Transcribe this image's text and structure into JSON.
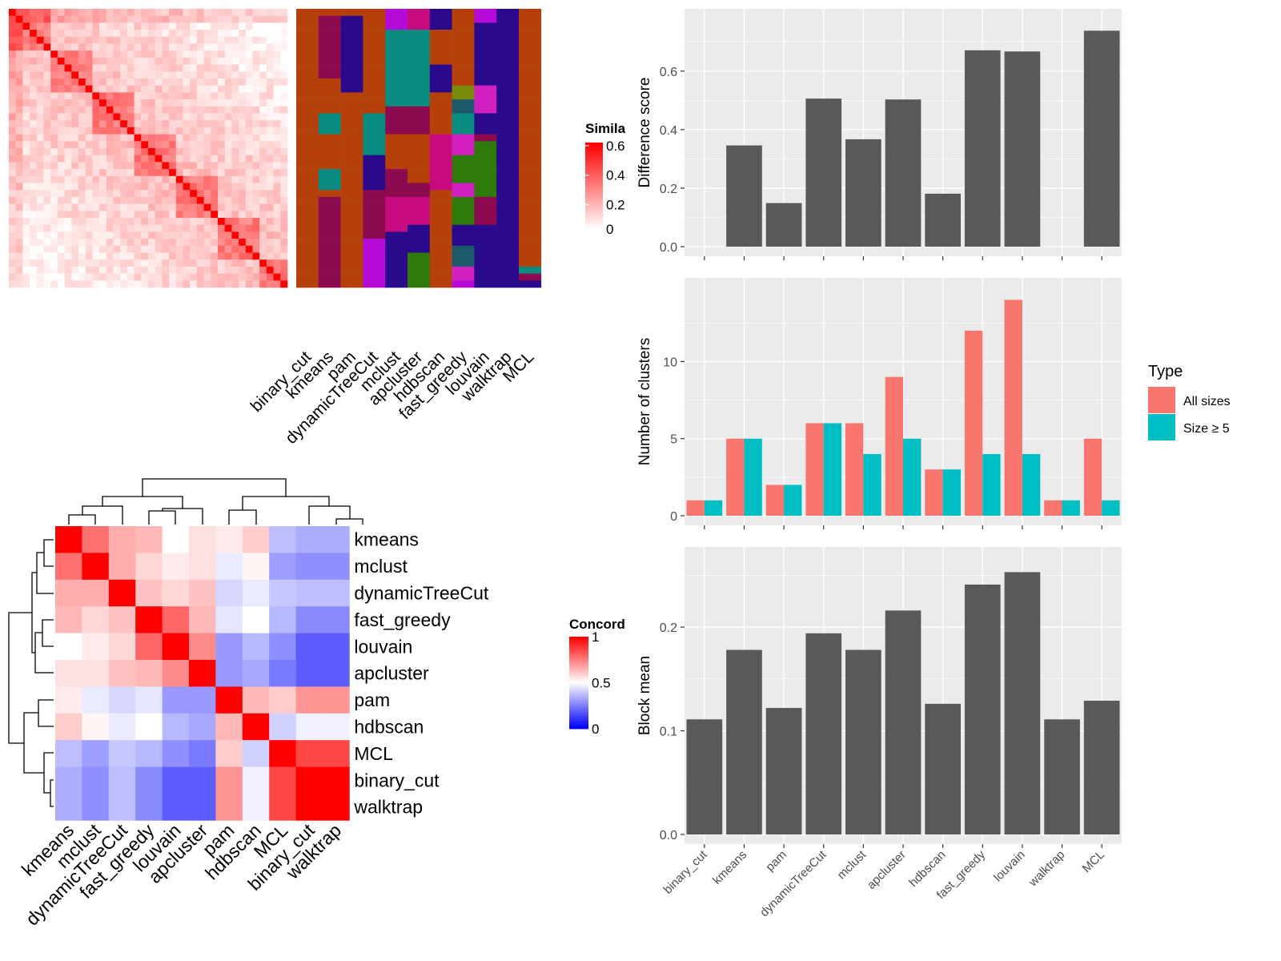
{
  "chart_data": [
    {
      "type": "heatmap",
      "panel": "similarity",
      "legend": {
        "title": "Simila",
        "ticks": [
          0,
          0.2,
          0.4,
          0.6
        ],
        "range": [
          0,
          0.6
        ],
        "colors": [
          "#ffffff",
          "#ff0000"
        ]
      },
      "matrix_size": 40,
      "column_labels": [
        "binary_cut",
        "kmeans",
        "pam",
        "dynamicTreeCut",
        "mclust",
        "apcluster",
        "hdbscan",
        "fast_greedy",
        "louvain",
        "walktrap",
        "MCL"
      ],
      "annotation_palette": [
        "#B5400A",
        "#8B0A50",
        "#2A0A8B",
        "#0A8B80",
        "#B50AD8",
        "#C80A80",
        "#2E7A0A",
        "#7A8B0A",
        "#1A5A6A",
        "#D020C0"
      ],
      "annotation_assignments": [
        [
          0,
          0,
          0,
          0,
          0,
          0,
          0,
          0,
          0,
          0,
          0,
          0,
          0,
          0,
          0,
          0,
          0,
          0,
          0,
          0,
          0,
          0,
          0,
          0,
          0,
          0,
          0,
          0,
          0,
          0,
          0,
          0,
          0,
          0,
          0,
          0,
          0,
          0,
          0,
          0
        ],
        [
          0,
          1,
          1,
          1,
          1,
          1,
          1,
          1,
          1,
          1,
          0,
          0,
          0,
          0,
          0,
          3,
          3,
          3,
          0,
          0,
          0,
          0,
          0,
          3,
          3,
          3,
          0,
          1,
          1,
          1,
          1,
          1,
          1,
          1,
          1,
          1,
          1,
          1,
          1,
          1
        ],
        [
          0,
          2,
          2,
          2,
          2,
          2,
          2,
          2,
          2,
          2,
          2,
          2,
          0,
          0,
          0,
          0,
          0,
          0,
          0,
          0,
          0,
          0,
          0,
          0,
          0,
          0,
          0,
          0,
          0,
          0,
          0,
          0,
          0,
          0,
          0,
          0,
          0,
          0,
          0,
          0
        ],
        [
          0,
          0,
          0,
          0,
          0,
          0,
          0,
          0,
          0,
          0,
          0,
          0,
          0,
          0,
          0,
          3,
          3,
          3,
          3,
          3,
          3,
          2,
          2,
          2,
          2,
          2,
          1,
          1,
          1,
          1,
          1,
          1,
          1,
          4,
          4,
          4,
          4,
          4,
          4,
          4
        ],
        [
          4,
          4,
          4,
          3,
          3,
          3,
          3,
          3,
          3,
          3,
          3,
          3,
          3,
          3,
          1,
          1,
          1,
          1,
          0,
          0,
          0,
          0,
          0,
          1,
          1,
          1,
          1,
          5,
          5,
          5,
          5,
          5,
          2,
          2,
          2,
          2,
          2,
          2,
          2,
          2
        ],
        [
          5,
          5,
          5,
          3,
          3,
          3,
          3,
          3,
          3,
          3,
          3,
          3,
          3,
          3,
          1,
          1,
          1,
          1,
          0,
          0,
          0,
          0,
          0,
          0,
          0,
          1,
          1,
          5,
          5,
          5,
          5,
          2,
          2,
          2,
          2,
          6,
          6,
          6,
          6,
          6
        ],
        [
          2,
          2,
          2,
          0,
          0,
          0,
          0,
          0,
          2,
          2,
          2,
          2,
          0,
          0,
          0,
          0,
          0,
          0,
          5,
          5,
          5,
          5,
          5,
          5,
          5,
          5,
          0,
          0,
          0,
          0,
          0,
          0,
          0,
          0,
          0,
          0,
          0,
          0,
          0,
          0
        ],
        [
          0,
          0,
          0,
          0,
          0,
          0,
          0,
          0,
          0,
          0,
          0,
          7,
          7,
          8,
          8,
          3,
          3,
          3,
          9,
          9,
          9,
          6,
          6,
          6,
          6,
          9,
          9,
          6,
          6,
          6,
          6,
          2,
          2,
          2,
          8,
          8,
          8,
          9,
          9,
          4
        ],
        [
          4,
          4,
          2,
          2,
          2,
          2,
          2,
          2,
          2,
          2,
          2,
          9,
          9,
          9,
          9,
          2,
          2,
          2,
          1,
          6,
          6,
          6,
          6,
          6,
          6,
          6,
          6,
          1,
          1,
          1,
          1,
          2,
          2,
          2,
          2,
          2,
          2,
          2,
          2,
          2
        ],
        [
          2,
          2,
          2,
          2,
          2,
          2,
          2,
          2,
          2,
          2,
          2,
          2,
          2,
          2,
          2,
          2,
          2,
          2,
          2,
          2,
          2,
          2,
          2,
          2,
          2,
          2,
          2,
          2,
          2,
          2,
          2,
          2,
          2,
          2,
          2,
          2,
          2,
          2,
          2,
          2
        ],
        [
          0,
          0,
          0,
          0,
          0,
          0,
          0,
          0,
          0,
          0,
          0,
          0,
          0,
          0,
          0,
          0,
          0,
          0,
          0,
          0,
          0,
          0,
          0,
          0,
          0,
          0,
          0,
          0,
          0,
          0,
          0,
          0,
          0,
          0,
          0,
          0,
          0,
          3,
          1,
          2
        ]
      ]
    },
    {
      "type": "bar",
      "panel": "difference",
      "categories": [
        "binary_cut",
        "kmeans",
        "pam",
        "dynamicTreeCut",
        "mclust",
        "apcluster",
        "hdbscan",
        "fast_greedy",
        "louvain",
        "walktrap",
        "MCL"
      ],
      "values": [
        0,
        0.346,
        0.149,
        0.506,
        0.367,
        0.503,
        0.181,
        0.671,
        0.667,
        0,
        0.738
      ],
      "ylabel": "Difference score",
      "ylim": [
        0,
        0.78
      ],
      "yticks": [
        0.0,
        0.2,
        0.4,
        0.6
      ],
      "ytick_labels": [
        "0.0",
        "0.2",
        "0.4",
        "0.6"
      ]
    },
    {
      "type": "bar",
      "panel": "clusters",
      "categories": [
        "binary_cut",
        "kmeans",
        "pam",
        "dynamicTreeCut",
        "mclust",
        "apcluster",
        "hdbscan",
        "fast_greedy",
        "louvain",
        "walktrap",
        "MCL"
      ],
      "series": [
        {
          "name": "All sizes",
          "color": "#F8766D",
          "values": [
            1,
            5,
            2,
            6,
            6,
            9,
            3,
            12,
            14,
            1,
            5
          ]
        },
        {
          "name": "Size ≥ 5",
          "color": "#00BFC4",
          "values": [
            1,
            5,
            2,
            6,
            4,
            5,
            3,
            4,
            4,
            1,
            1
          ]
        }
      ],
      "ylabel": "Number of clusters",
      "ylim": [
        0,
        14.8
      ],
      "yticks": [
        0,
        5,
        10
      ],
      "ytick_labels": [
        "0",
        "5",
        "10"
      ],
      "legend": {
        "title": "Type",
        "placement": "right"
      }
    },
    {
      "type": "bar",
      "panel": "block_mean",
      "categories": [
        "binary_cut",
        "kmeans",
        "pam",
        "dynamicTreeCut",
        "mclust",
        "apcluster",
        "hdbscan",
        "fast_greedy",
        "louvain",
        "walktrap",
        "MCL"
      ],
      "values": [
        0.111,
        0.178,
        0.122,
        0.194,
        0.178,
        0.216,
        0.126,
        0.241,
        0.253,
        0.111,
        0.129
      ],
      "ylabel": "Block mean",
      "ylim": [
        0,
        0.268
      ],
      "yticks": [
        0.0,
        0.1,
        0.2
      ],
      "ytick_labels": [
        "0.0",
        "0.1",
        "0.2"
      ]
    },
    {
      "type": "heatmap",
      "panel": "concordance",
      "legend": {
        "title": "Concord",
        "ticks": [
          0,
          0.5,
          1
        ],
        "tick_labels": [
          "0",
          "0.5",
          "1"
        ],
        "range": [
          0,
          1
        ],
        "colors": [
          "#0000ff",
          "#ffffff",
          "#ff0000"
        ]
      },
      "row_labels": [
        "kmeans",
        "mclust",
        "dynamicTreeCut",
        "fast_greedy",
        "louvain",
        "apcluster",
        "pam",
        "hdbscan",
        "MCL",
        "binary_cut",
        "walktrap"
      ],
      "column_labels": [
        "kmeans",
        "mclust",
        "dynamicTreeCut",
        "fast_greedy",
        "louvain",
        "apcluster",
        "pam",
        "hdbscan",
        "MCL",
        "binary_cut",
        "walktrap"
      ],
      "values": [
        [
          1.0,
          0.78,
          0.66,
          0.64,
          0.5,
          0.56,
          0.54,
          0.6,
          0.37,
          0.34,
          0.34
        ],
        [
          0.78,
          1.0,
          0.66,
          0.58,
          0.54,
          0.56,
          0.46,
          0.52,
          0.31,
          0.28,
          0.28
        ],
        [
          0.66,
          0.66,
          1.0,
          0.62,
          0.58,
          0.62,
          0.42,
          0.46,
          0.39,
          0.37,
          0.37
        ],
        [
          0.64,
          0.58,
          0.62,
          1.0,
          0.8,
          0.64,
          0.45,
          0.5,
          0.36,
          0.27,
          0.27
        ],
        [
          0.5,
          0.54,
          0.58,
          0.8,
          1.0,
          0.73,
          0.3,
          0.36,
          0.28,
          0.18,
          0.18
        ],
        [
          0.56,
          0.56,
          0.62,
          0.64,
          0.73,
          1.0,
          0.3,
          0.33,
          0.24,
          0.18,
          0.18
        ],
        [
          0.54,
          0.46,
          0.42,
          0.45,
          0.3,
          0.3,
          1.0,
          0.64,
          0.6,
          0.71,
          0.71
        ],
        [
          0.6,
          0.52,
          0.46,
          0.5,
          0.36,
          0.33,
          0.64,
          1.0,
          0.41,
          0.47,
          0.47
        ],
        [
          0.37,
          0.31,
          0.39,
          0.36,
          0.28,
          0.24,
          0.6,
          0.41,
          1.0,
          0.86,
          0.86
        ],
        [
          0.34,
          0.28,
          0.37,
          0.27,
          0.18,
          0.18,
          0.71,
          0.47,
          0.86,
          1.0,
          1.0
        ],
        [
          0.34,
          0.28,
          0.37,
          0.27,
          0.18,
          0.18,
          0.71,
          0.47,
          0.86,
          1.0,
          1.0
        ]
      ]
    }
  ]
}
